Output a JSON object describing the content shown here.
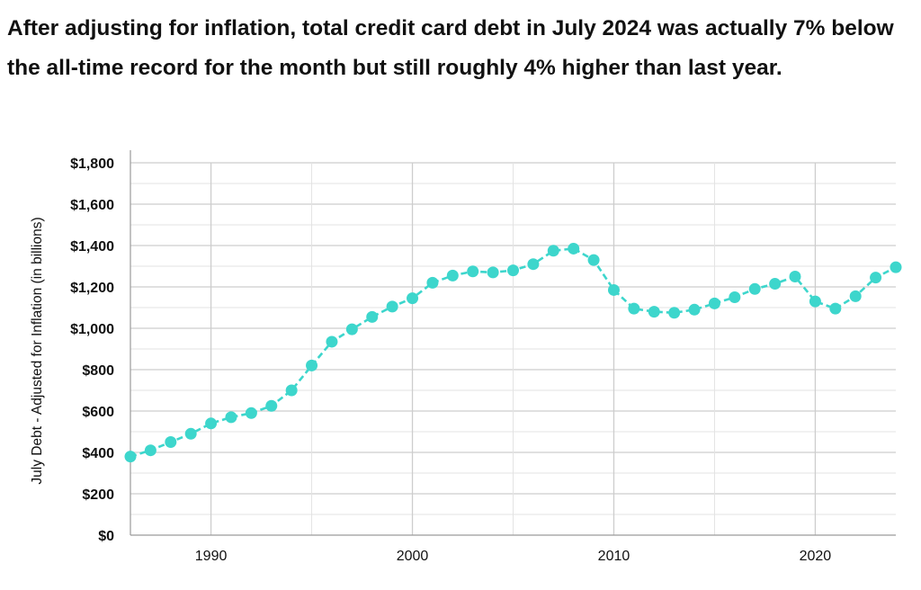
{
  "headline": "After adjusting for inflation, total credit card debt in July 2024 was actually 7% below the all-time record for the month but still roughly 4% higher than last year.",
  "chart_data": {
    "type": "line",
    "title": "",
    "xlabel": "",
    "ylabel": "July Debt - Adjusted for Inflation (in billions)",
    "xlim": [
      1986,
      2024
    ],
    "ylim": [
      0,
      1800
    ],
    "x_ticks": [
      1990,
      2000,
      2010,
      2020
    ],
    "x_tick_labels": [
      "1990",
      "2000",
      "2010",
      "2020"
    ],
    "y_ticks": [
      0,
      200,
      400,
      600,
      800,
      1000,
      1200,
      1400,
      1600,
      1800
    ],
    "y_tick_labels": [
      "$0",
      "$200",
      "$400",
      "$600",
      "$800",
      "$1,000",
      "$1,200",
      "$1,400",
      "$1,600",
      "$1,800"
    ],
    "grid": true,
    "line_style": "dashed",
    "marker": "circle",
    "color": "#3dd6cc",
    "series": [
      {
        "x": [
          1986,
          1987,
          1988,
          1989,
          1990,
          1991,
          1992,
          1993,
          1994,
          1995,
          1996,
          1997,
          1998,
          1999,
          2000,
          2001,
          2002,
          2003,
          2004,
          2005,
          2006,
          2007,
          2008,
          2009,
          2010,
          2011,
          2012,
          2013,
          2014,
          2015,
          2016,
          2017,
          2018,
          2019,
          2020,
          2021,
          2022,
          2023,
          2024
        ],
        "values": [
          380,
          410,
          450,
          490,
          540,
          570,
          590,
          625,
          700,
          820,
          935,
          995,
          1055,
          1105,
          1145,
          1220,
          1255,
          1275,
          1270,
          1280,
          1310,
          1375,
          1385,
          1330,
          1185,
          1095,
          1080,
          1075,
          1090,
          1120,
          1150,
          1190,
          1215,
          1250,
          1130,
          1095,
          1155,
          1245,
          1295
        ]
      }
    ]
  }
}
